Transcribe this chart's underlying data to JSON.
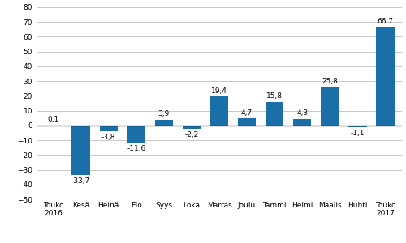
{
  "categories": [
    "Touko\n2016",
    "Kesä",
    "Heinä",
    "Elo",
    "Syys",
    "Loka",
    "Marras",
    "Joulu",
    "Tammi",
    "Helmi",
    "Maalis",
    "Huhti",
    "Touko\n2017"
  ],
  "values": [
    0.1,
    -33.7,
    -3.8,
    -11.6,
    3.9,
    -2.2,
    19.4,
    4.7,
    15.8,
    4.3,
    25.8,
    -1.1,
    66.7
  ],
  "bar_color": "#1a6fa8",
  "ylim": [
    -50,
    80
  ],
  "yticks": [
    -50,
    -40,
    -30,
    -20,
    -10,
    0,
    10,
    20,
    30,
    40,
    50,
    60,
    70,
    80
  ],
  "background_color": "#ffffff",
  "grid_color": "#c8c8c8",
  "label_fontsize": 6.5,
  "value_fontsize": 6.5
}
